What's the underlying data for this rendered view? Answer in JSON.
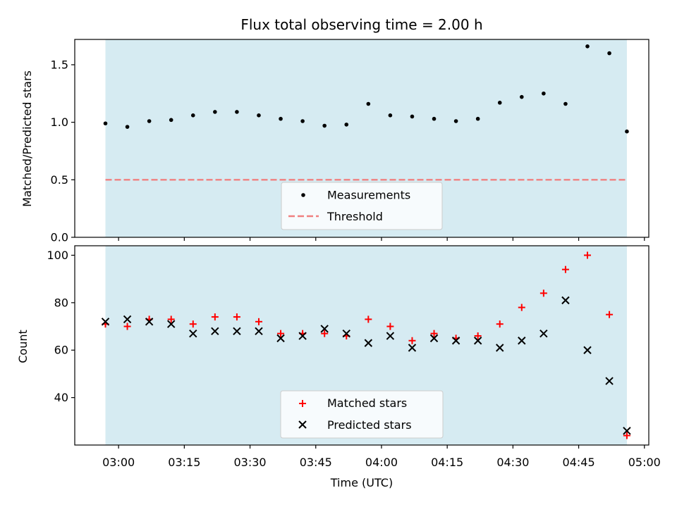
{
  "chart_data": [
    {
      "type": "scatter",
      "title": "Flux total observing time = 2.00 h",
      "ylabel": "Matched/Predicted stars",
      "xlabel": "",
      "ylim": [
        0,
        1.72
      ],
      "yticks": [
        0.0,
        0.5,
        1.0,
        1.5
      ],
      "ytick_labels": [
        "0.0",
        "0.5",
        "1.0",
        "1.5"
      ],
      "shaded_span": {
        "from": "02:57",
        "to": "04:56",
        "color": "#add8e6"
      },
      "series": [
        {
          "name": "Measurements",
          "marker": "dot",
          "color": "#000000",
          "x": [
            "02:57",
            "03:02",
            "03:07",
            "03:12",
            "03:17",
            "03:22",
            "03:27",
            "03:32",
            "03:37",
            "03:42",
            "03:47",
            "03:52",
            "03:57",
            "04:02",
            "04:07",
            "04:12",
            "04:17",
            "04:22",
            "04:27",
            "04:32",
            "04:37",
            "04:42",
            "04:47",
            "04:52",
            "04:56"
          ],
          "y": [
            0.99,
            0.96,
            1.01,
            1.02,
            1.06,
            1.09,
            1.09,
            1.06,
            1.03,
            1.01,
            0.97,
            0.98,
            1.16,
            1.06,
            1.05,
            1.03,
            1.01,
            1.03,
            1.17,
            1.22,
            1.25,
            1.16,
            1.66,
            1.6,
            0.92
          ]
        }
      ],
      "threshold": {
        "name": "Threshold",
        "value": 0.5,
        "color": "#f08080",
        "style": "dashed"
      },
      "legend": {
        "placement": "lower-center",
        "entries": [
          "Measurements",
          "Threshold"
        ]
      }
    },
    {
      "type": "scatter",
      "title": "",
      "xlabel": "Time (UTC)",
      "ylabel": "Count",
      "ylim": [
        20,
        104
      ],
      "yticks": [
        40,
        60,
        80,
        100
      ],
      "ytick_labels": [
        "40",
        "60",
        "80",
        "100"
      ],
      "xlim": [
        "02:50",
        "05:01"
      ],
      "xticks": [
        "03:00",
        "03:15",
        "03:30",
        "03:45",
        "04:00",
        "04:15",
        "04:30",
        "04:45",
        "05:00"
      ],
      "shaded_span": {
        "from": "02:57",
        "to": "04:56",
        "color": "#add8e6"
      },
      "series": [
        {
          "name": "Matched stars",
          "marker": "plus",
          "color": "#ff0000",
          "x": [
            "02:57",
            "03:02",
            "03:07",
            "03:12",
            "03:17",
            "03:22",
            "03:27",
            "03:32",
            "03:37",
            "03:42",
            "03:47",
            "03:52",
            "03:57",
            "04:02",
            "04:07",
            "04:12",
            "04:17",
            "04:22",
            "04:27",
            "04:32",
            "04:37",
            "04:42",
            "04:47",
            "04:52",
            "04:56"
          ],
          "y": [
            71,
            70,
            73,
            73,
            71,
            74,
            74,
            72,
            67,
            67,
            67,
            66,
            73,
            70,
            64,
            67,
            65,
            66,
            71,
            78,
            84,
            94,
            100,
            75,
            24
          ]
        },
        {
          "name": "Predicted stars",
          "marker": "x",
          "color": "#000000",
          "x": [
            "02:57",
            "03:02",
            "03:07",
            "03:12",
            "03:17",
            "03:22",
            "03:27",
            "03:32",
            "03:37",
            "03:42",
            "03:47",
            "03:52",
            "03:57",
            "04:02",
            "04:07",
            "04:12",
            "04:17",
            "04:22",
            "04:27",
            "04:32",
            "04:37",
            "04:42",
            "04:47",
            "04:52",
            "04:56"
          ],
          "y": [
            72,
            73,
            72,
            71,
            67,
            68,
            68,
            68,
            65,
            66,
            69,
            67,
            63,
            66,
            61,
            65,
            64,
            64,
            61,
            64,
            67,
            81,
            60,
            47,
            26
          ]
        }
      ],
      "legend": {
        "placement": "lower-center",
        "entries": [
          "Matched stars",
          "Predicted stars"
        ]
      }
    }
  ]
}
